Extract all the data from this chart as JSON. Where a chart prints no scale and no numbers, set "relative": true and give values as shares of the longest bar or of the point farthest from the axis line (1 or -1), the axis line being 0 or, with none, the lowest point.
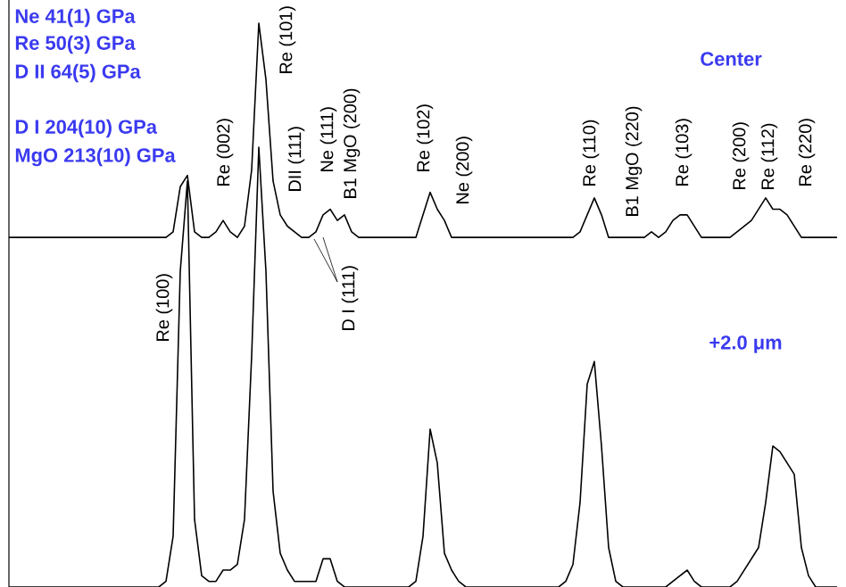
{
  "chart_data": {
    "type": "line",
    "relative": true,
    "categories": [
      null,
      null,
      null,
      null,
      null,
      null,
      null,
      null,
      null,
      null,
      null,
      null,
      null,
      null,
      null,
      null,
      null,
      null,
      null,
      null,
      null,
      null,
      null,
      null,
      null,
      null,
      null,
      null,
      null,
      null,
      null,
      null,
      null,
      null,
      null,
      null,
      null,
      null,
      null,
      null,
      null,
      null,
      null,
      null,
      null,
      null,
      null,
      null,
      null,
      null,
      null,
      null,
      null,
      null,
      null,
      null,
      null,
      null,
      null,
      null,
      null,
      null,
      null,
      null,
      null,
      null,
      null,
      null,
      null,
      null,
      null,
      null,
      null,
      null,
      null,
      null,
      null,
      null,
      null,
      null,
      null,
      null,
      null,
      null,
      null,
      null,
      null,
      null,
      null,
      null,
      null,
      null,
      null,
      null,
      null,
      null,
      null,
      null,
      null,
      null,
      null,
      null,
      null,
      null,
      null,
      null,
      null,
      null,
      null,
      null,
      null,
      null,
      null,
      null,
      null,
      null,
      null
    ],
    "series": [
      {
        "color": "#000000",
        "values": [
          0.62,
          0.62,
          0.62,
          0.62,
          0.62,
          0.62,
          0.62,
          0.62,
          0.62,
          0.62,
          0.62,
          0.62,
          0.62,
          0.62,
          0.62,
          0.62,
          0.62,
          0.62,
          0.62,
          0.62,
          0.62,
          0.62,
          0.62,
          0.63,
          0.71,
          0.73,
          0.63,
          0.62,
          0.62,
          0.63,
          0.65,
          0.63,
          0.62,
          0.64,
          0.74,
          1.0,
          0.9,
          0.72,
          0.66,
          0.64,
          0.63,
          0.62,
          0.62,
          0.63,
          0.66,
          0.67,
          0.65,
          0.66,
          0.63,
          0.62,
          0.62,
          0.62,
          0.62,
          0.62,
          0.62,
          0.62,
          0.62,
          0.62,
          0.66,
          0.7,
          0.67,
          0.65,
          0.62,
          0.62,
          0.62,
          0.62,
          0.62,
          0.62,
          0.62,
          0.62,
          0.62,
          0.62,
          0.62,
          0.62,
          0.62,
          0.62,
          0.62,
          0.62,
          0.62,
          0.62,
          0.63,
          0.66,
          0.69,
          0.66,
          0.62,
          0.62,
          0.62,
          0.62,
          0.62,
          0.62,
          0.63,
          0.62,
          0.63,
          0.65,
          0.66,
          0.66,
          0.64,
          0.62,
          0.62,
          0.62,
          0.62,
          0.62,
          0.63,
          0.64,
          0.65,
          0.67,
          0.69,
          0.67,
          0.67,
          0.66,
          0.64,
          0.62,
          0.62,
          0.62,
          0.62,
          0.62,
          0.62
        ]
      },
      {
        "color": "#000000",
        "values": [
          0,
          0,
          0,
          0,
          0,
          0,
          0,
          0,
          0,
          0,
          0,
          0,
          0,
          0,
          0,
          0,
          0,
          0,
          0,
          0,
          0,
          0,
          0.01,
          0.09,
          0.56,
          0.72,
          0.12,
          0.02,
          0.01,
          0.01,
          0.03,
          0.03,
          0.04,
          0.12,
          0.41,
          0.78,
          0.56,
          0.17,
          0.06,
          0.03,
          0.01,
          0.01,
          0.01,
          0.01,
          0.05,
          0.05,
          0.01,
          0,
          0,
          0,
          0,
          0,
          0,
          0,
          0,
          0,
          0,
          0.01,
          0.09,
          0.28,
          0.22,
          0.06,
          0.03,
          0.01,
          0,
          0,
          0,
          0,
          0,
          0,
          0,
          0,
          0,
          0,
          0,
          0,
          0,
          0,
          0.01,
          0.04,
          0.15,
          0.36,
          0.4,
          0.25,
          0.07,
          0.01,
          0,
          0,
          0,
          0,
          0,
          0,
          0,
          0.01,
          0.02,
          0.03,
          0.01,
          0,
          0,
          0,
          0,
          0,
          0.01,
          0.03,
          0.05,
          0.07,
          0.15,
          0.25,
          0.24,
          0.22,
          0.2,
          0.07,
          0.02,
          0,
          0,
          0,
          0
        ]
      }
    ],
    "annotations": [
      "Ne 41(1) GPa",
      "Re 50(3) GPa",
      "D II 64(5) GPa",
      "D I 204(10) GPa",
      "MgO 213(10) GPa",
      "Center",
      "+2.0 μm",
      "Re (100)",
      "Re (002)",
      "Re (101)",
      "DII (111)",
      "Ne (111)",
      "B1 MgO (200)",
      "D I (111)",
      "Re (102)",
      "Ne (200)",
      "Re (110)",
      "B1 MgO (220)",
      "Re (103)",
      "Re (200)",
      "Re (112)",
      "Re (220)"
    ]
  }
}
